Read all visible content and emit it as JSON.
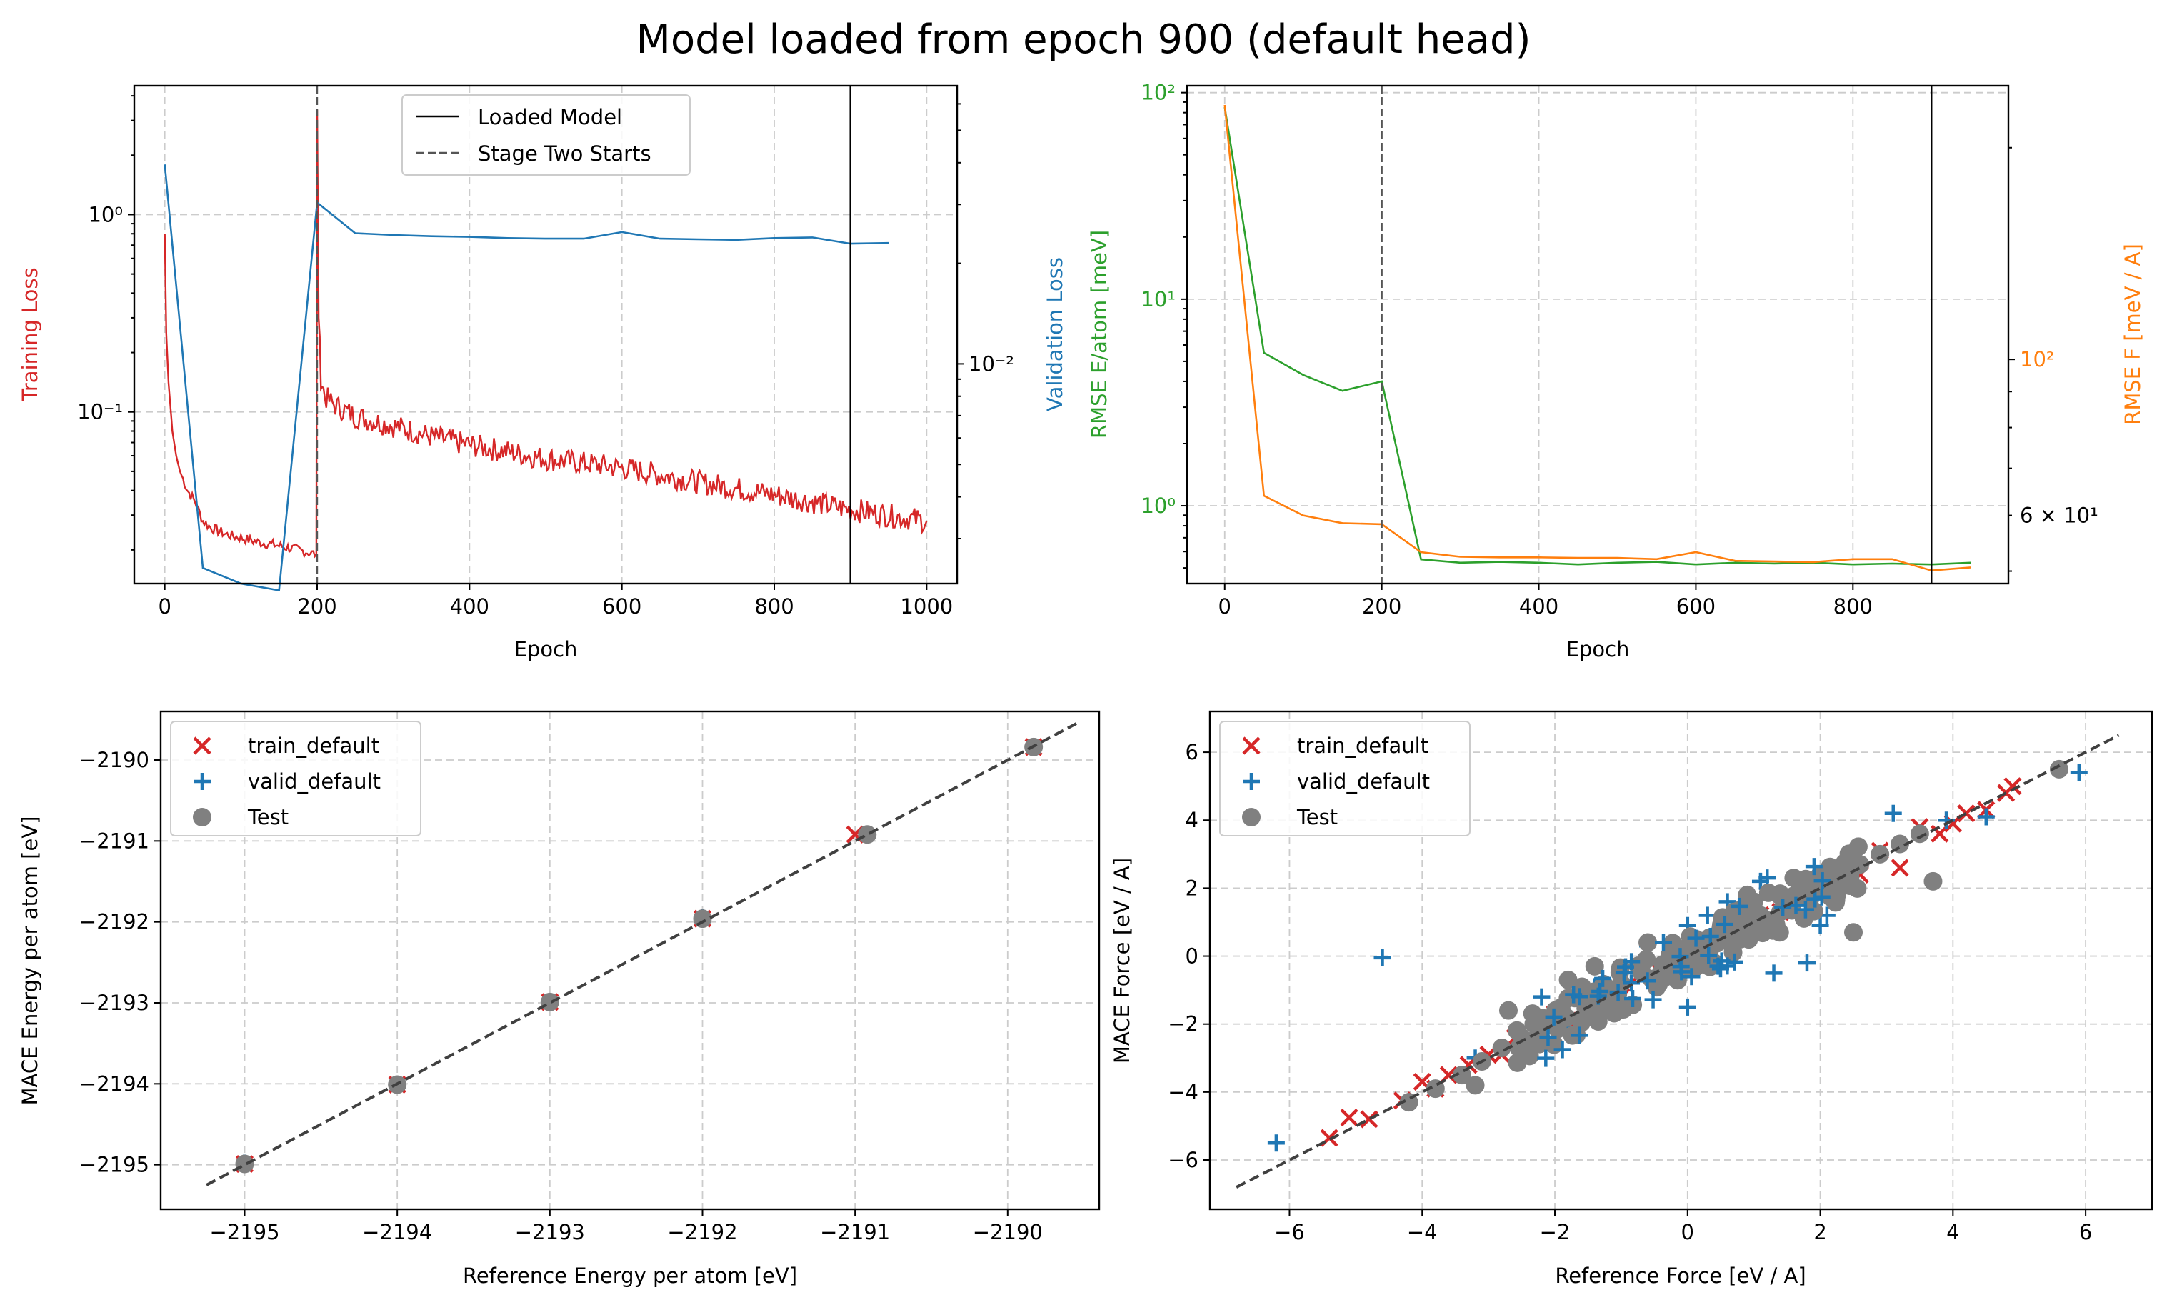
{
  "figure": {
    "title": "Model loaded from epoch 900 (default head)"
  },
  "colors": {
    "train": "#d62728",
    "valid": "#1f77b4",
    "energy": "#2ca02c",
    "force": "#ff7f0e",
    "test": "#808080",
    "grid": "#cccccc",
    "axis": "#000000",
    "ref_line": "#404040"
  },
  "chart_data": [
    {
      "type": "line",
      "title": "",
      "xlabel": "Epoch",
      "ylabel": "Training Loss",
      "ylabel_right": "Validation Loss",
      "xlim": [
        -40,
        1040
      ],
      "ylim": [
        0.0135,
        4.5
      ],
      "yscale": "log",
      "ylim_right": [
        0.0022,
        0.068
      ],
      "yscale_right": "log",
      "xticks": [
        0,
        200,
        400,
        600,
        800,
        1000
      ],
      "xtick_labels": [
        "0",
        "200",
        "400",
        "600",
        "800",
        "1000"
      ],
      "yticks": [
        0.1,
        1
      ],
      "ytick_labels": [
        "10⁻¹",
        "10⁰"
      ],
      "yticks_right": [
        0.01
      ],
      "ytick_labels_right": [
        "10⁻²"
      ],
      "vlines": [
        {
          "x": 900,
          "style": "solid",
          "label": "Loaded Model"
        },
        {
          "x": 200,
          "style": "dashed",
          "label": "Stage Two Starts"
        }
      ],
      "legend": [
        "Loaded Model",
        "Stage Two Starts"
      ],
      "legend_position": "upper-center",
      "series": [
        {
          "name": "Training Loss",
          "axis": "left",
          "x": [
            0,
            2,
            5,
            10,
            15,
            20,
            30,
            40,
            50,
            60,
            80,
            100,
            120,
            150,
            175,
            199,
            200,
            202,
            205,
            210,
            220,
            250,
            300,
            350,
            400,
            450,
            500,
            550,
            600,
            650,
            700,
            750,
            800,
            850,
            900,
            950,
            1000
          ],
          "values": [
            0.8,
            0.25,
            0.14,
            0.08,
            0.06,
            0.05,
            0.04,
            0.035,
            0.028,
            0.026,
            0.024,
            0.023,
            0.022,
            0.021,
            0.02,
            0.019,
            3.4,
            0.3,
            0.15,
            0.12,
            0.11,
            0.095,
            0.085,
            0.075,
            0.068,
            0.063,
            0.058,
            0.055,
            0.052,
            0.048,
            0.044,
            0.041,
            0.038,
            0.035,
            0.032,
            0.03,
            0.028
          ],
          "noise": "jagged"
        },
        {
          "name": "Validation Loss",
          "axis": "right",
          "x": [
            0,
            50,
            100,
            150,
            200,
            250,
            300,
            350,
            400,
            450,
            500,
            550,
            600,
            650,
            700,
            750,
            800,
            850,
            900,
            950
          ],
          "values": [
            0.0395,
            0.00245,
            0.0022,
            0.0021,
            0.0304,
            0.0246,
            0.0243,
            0.0241,
            0.024,
            0.0238,
            0.0237,
            0.0237,
            0.0248,
            0.0237,
            0.0236,
            0.0235,
            0.0238,
            0.0239,
            0.0229,
            0.023
          ]
        }
      ]
    },
    {
      "type": "line",
      "title": "",
      "xlabel": "Epoch",
      "ylabel": "RMSE E/atom [meV]",
      "ylabel_right": "RMSE F [meV / A]",
      "xlim": [
        -48,
        998
      ],
      "ylim": [
        0.42,
        108
      ],
      "yscale": "log",
      "ylim_right": [
        48,
        245
      ],
      "yscale_right": "log",
      "xticks": [
        0,
        200,
        400,
        600,
        800
      ],
      "xtick_labels": [
        "0",
        "200",
        "400",
        "600",
        "800"
      ],
      "yticks": [
        1,
        10,
        100
      ],
      "ytick_labels": [
        "10⁰",
        "10¹",
        "10²"
      ],
      "yticks_right": [
        60,
        100
      ],
      "ytick_labels_right": [
        "6 × 10¹",
        "10²"
      ],
      "vlines": [
        {
          "x": 900,
          "style": "solid",
          "label": "Loaded Model"
        },
        {
          "x": 200,
          "style": "dashed",
          "label": "Stage Two Starts"
        }
      ],
      "series": [
        {
          "name": "RMSE E/atom [meV]",
          "axis": "left",
          "x": [
            0,
            50,
            100,
            150,
            200,
            250,
            300,
            350,
            400,
            450,
            500,
            550,
            600,
            650,
            700,
            750,
            800,
            850,
            900,
            950
          ],
          "values": [
            85,
            5.5,
            4.3,
            3.6,
            4.0,
            0.55,
            0.53,
            0.535,
            0.53,
            0.52,
            0.53,
            0.535,
            0.52,
            0.53,
            0.525,
            0.53,
            0.52,
            0.525,
            0.52,
            0.53
          ]
        },
        {
          "name": "RMSE F [meV / A]",
          "axis": "right",
          "x": [
            0,
            50,
            100,
            150,
            200,
            250,
            300,
            350,
            400,
            450,
            500,
            550,
            600,
            650,
            700,
            750,
            800,
            850,
            900,
            950
          ],
          "values": [
            230,
            64,
            60,
            58.5,
            58.3,
            53.2,
            52.4,
            52.3,
            52.3,
            52.2,
            52.2,
            52.0,
            53.2,
            51.7,
            51.6,
            51.5,
            52.0,
            52.0,
            50.1,
            50.6
          ]
        }
      ]
    },
    {
      "type": "scatter",
      "title": "",
      "xlabel": "Reference Energy per atom [eV]",
      "ylabel": "MACE Energy per atom [eV]",
      "xlim": [
        -2195.55,
        -2189.4
      ],
      "ylim": [
        -2195.55,
        -2189.4
      ],
      "xticks": [
        -2195,
        -2194,
        -2193,
        -2192,
        -2191,
        -2190
      ],
      "xtick_labels": [
        "−2195",
        "−2194",
        "−2193",
        "−2192",
        "−2191",
        "−2190"
      ],
      "yticks": [
        -2195,
        -2194,
        -2193,
        -2192,
        -2191,
        -2190
      ],
      "ytick_labels": [
        "−2195",
        "−2194",
        "−2193",
        "−2192",
        "−2191",
        "−2190"
      ],
      "reference_line": [
        -2195.25,
        -2189.55
      ],
      "legend": [
        "train_default",
        "valid_default",
        "Test"
      ],
      "legend_position": "upper-left",
      "series": [
        {
          "name": "train_default",
          "marker": "x",
          "x": [
            -2195,
            -2194,
            -2193,
            -2192,
            -2191,
            -2189.83
          ],
          "values": [
            -2194.99,
            -2194.01,
            -2192.99,
            -2191.96,
            -2190.92,
            -2189.84
          ]
        },
        {
          "name": "valid_default",
          "marker": "+",
          "x": [
            -2195,
            -2193,
            -2192
          ],
          "values": [
            -2194.98,
            -2193.0,
            -2191.95
          ]
        },
        {
          "name": "Test",
          "marker": "o",
          "x": [
            -2195,
            -2194,
            -2193,
            -2192,
            -2190.92,
            -2189.83
          ],
          "values": [
            -2194.99,
            -2194.01,
            -2192.99,
            -2191.96,
            -2190.92,
            -2189.84
          ]
        }
      ]
    },
    {
      "type": "scatter",
      "title": "",
      "xlabel": "Reference Force [eV / A]",
      "ylabel": "MACE Force [eV / A]",
      "xlim": [
        -7.2,
        7.0
      ],
      "ylim": [
        -7.45,
        7.2
      ],
      "xticks": [
        -6,
        -4,
        -2,
        0,
        2,
        4,
        6
      ],
      "xtick_labels": [
        "−6",
        "−4",
        "−2",
        "0",
        "2",
        "4",
        "6"
      ],
      "yticks": [
        -6,
        -4,
        -2,
        0,
        2,
        4,
        6
      ],
      "ytick_labels": [
        "−6",
        "−4",
        "−2",
        "0",
        "2",
        "4",
        "6"
      ],
      "reference_line": [
        -6.8,
        6.5
      ],
      "legend": [
        "train_default",
        "valid_default",
        "Test"
      ],
      "legend_position": "upper-left",
      "series": [
        {
          "name": "train_default",
          "marker": "x",
          "x": [
            -5.4,
            -5.1,
            -4.8,
            -4.3,
            -4.0,
            -3.8,
            -3.6,
            -3.3,
            -3.0,
            -2.8,
            -2.6,
            -2.3,
            -2.0,
            -1.8,
            -1.5,
            -1.2,
            -1.0,
            -0.7,
            -0.4,
            -0.1,
            0.2,
            0.5,
            0.8,
            1.1,
            1.4,
            1.7,
            2.0,
            2.3,
            2.6,
            2.9,
            3.2,
            3.5,
            3.8,
            4.0,
            4.2,
            4.5,
            4.8,
            4.9
          ],
          "values": [
            -5.35,
            -4.75,
            -4.8,
            -4.25,
            -3.7,
            -3.9,
            -3.5,
            -3.2,
            -2.9,
            -2.9,
            -2.4,
            -2.2,
            -1.7,
            -1.9,
            -1.4,
            -1.0,
            -1.2,
            -0.5,
            -0.5,
            0.1,
            0.2,
            0.7,
            0.6,
            1.2,
            1.3,
            1.9,
            1.8,
            2.5,
            2.4,
            3.1,
            2.6,
            3.8,
            3.6,
            3.9,
            4.2,
            4.3,
            4.8,
            5.0
          ]
        },
        {
          "name": "valid_default",
          "marker": "+",
          "x": [
            -6.2,
            -4.6,
            -2.6,
            -2.2,
            -1.8,
            -1.4,
            -1.0,
            -0.6,
            -0.2,
            0.0,
            0.3,
            0.6,
            0.9,
            1.1,
            1.3,
            1.5,
            1.8,
            2.1,
            3.1,
            3.9,
            4.5,
            5.9,
            -3.2,
            -2.0,
            0.0,
            1.2,
            2.0
          ],
          "values": [
            -5.5,
            -0.05,
            -2.7,
            -1.2,
            -2.1,
            -0.9,
            -1.3,
            0.3,
            -0.4,
            0.9,
            1.2,
            1.6,
            0.8,
            2.2,
            -0.5,
            1.7,
            -0.2,
            1.2,
            4.2,
            4.0,
            4.1,
            5.4,
            -3.0,
            -2.2,
            -1.5,
            2.3,
            0.9
          ]
        },
        {
          "name": "Test",
          "marker": "o",
          "x": [
            -4.2,
            -3.8,
            -3.4,
            -3.1,
            -2.8,
            -2.5,
            -2.2,
            -1.9,
            -1.6,
            -1.3,
            -1.0,
            -0.7,
            -0.4,
            -0.1,
            0.2,
            0.5,
            0.8,
            1.1,
            1.4,
            1.7,
            2.0,
            2.3,
            2.6,
            2.9,
            3.2,
            3.5,
            3.7,
            5.6,
            -2.7,
            -1.8,
            -1.2,
            -0.6,
            0.4,
            1.0,
            1.6,
            2.5,
            -3.2,
            -1.4,
            0.9
          ],
          "values": [
            -4.3,
            -3.9,
            -3.5,
            -3.1,
            -2.7,
            -2.4,
            -2.1,
            -1.6,
            -1.0,
            -1.3,
            -0.8,
            -0.3,
            -0.5,
            0.2,
            0.3,
            0.8,
            0.5,
            1.2,
            1.3,
            1.9,
            2.4,
            2.1,
            2.7,
            3.0,
            3.3,
            3.6,
            2.2,
            5.5,
            -1.6,
            -0.7,
            -1.6,
            0.4,
            -0.2,
            1.6,
            2.3,
            0.7,
            -3.8,
            -0.3,
            1.8
          ]
        }
      ]
    }
  ]
}
